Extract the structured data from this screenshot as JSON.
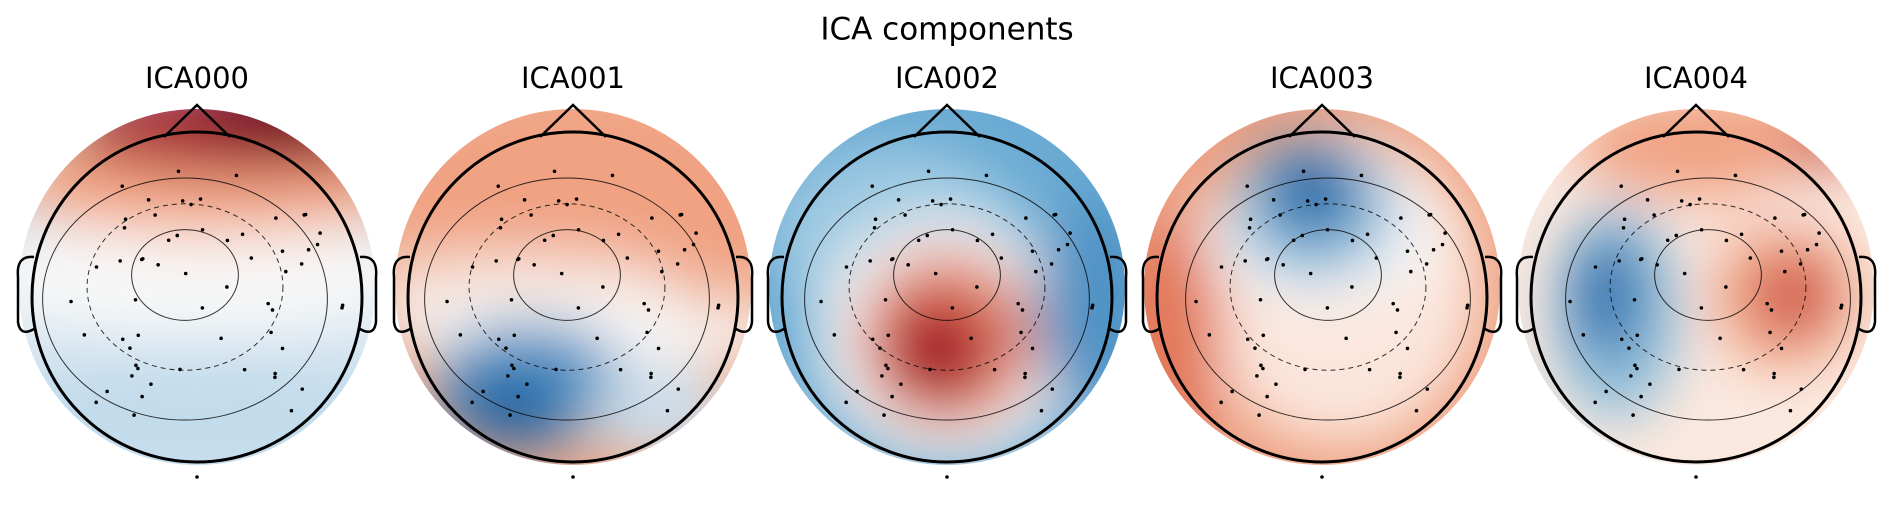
{
  "title": "ICA components",
  "panels": [
    {
      "title": "ICA000"
    },
    {
      "title": "ICA001"
    },
    {
      "title": "ICA002"
    },
    {
      "title": "ICA003"
    },
    {
      "title": "ICA004"
    }
  ]
}
